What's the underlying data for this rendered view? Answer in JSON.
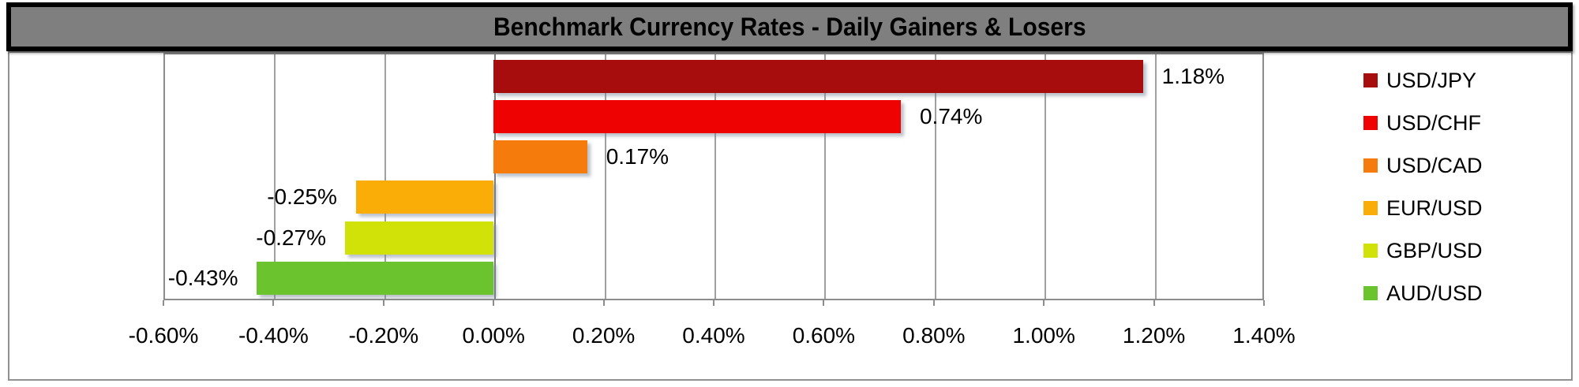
{
  "chart_data": {
    "type": "bar",
    "orientation": "horizontal",
    "title": "Benchmark Currency Rates - Daily Gainers & Losers",
    "series": [
      {
        "name": "USD/JPY",
        "value": 1.18,
        "label": "1.18%",
        "color": "#A80D0D"
      },
      {
        "name": "USD/CHF",
        "value": 0.74,
        "label": "0.74%",
        "color": "#EE0202"
      },
      {
        "name": "USD/CAD",
        "value": 0.17,
        "label": "0.17%",
        "color": "#F57C0C"
      },
      {
        "name": "EUR/USD",
        "value": -0.25,
        "label": "-0.25%",
        "color": "#FAAD07"
      },
      {
        "name": "GBP/USD",
        "value": -0.27,
        "label": "-0.27%",
        "color": "#D0E207"
      },
      {
        "name": "AUD/USD",
        "value": -0.43,
        "label": "-0.43%",
        "color": "#6BC42D"
      }
    ],
    "x_axis": {
      "min": -0.6,
      "max": 1.4,
      "step": 0.2,
      "tick_labels": [
        "-0.60%",
        "-0.40%",
        "-0.20%",
        "0.00%",
        "0.20%",
        "0.40%",
        "0.60%",
        "0.80%",
        "1.00%",
        "1.20%",
        "1.40%"
      ]
    },
    "legend_position": "right",
    "grid": true,
    "data_labels": true
  },
  "colors": {
    "title_background": "#7F7F7F",
    "title_border": "#000000",
    "chart_border": "#919191",
    "plot_border": "#8C8C8C",
    "gridline": "#A0A0A0",
    "zero_line": "#7D7D7D",
    "text": "#000000",
    "background": "#FFFFFF"
  }
}
